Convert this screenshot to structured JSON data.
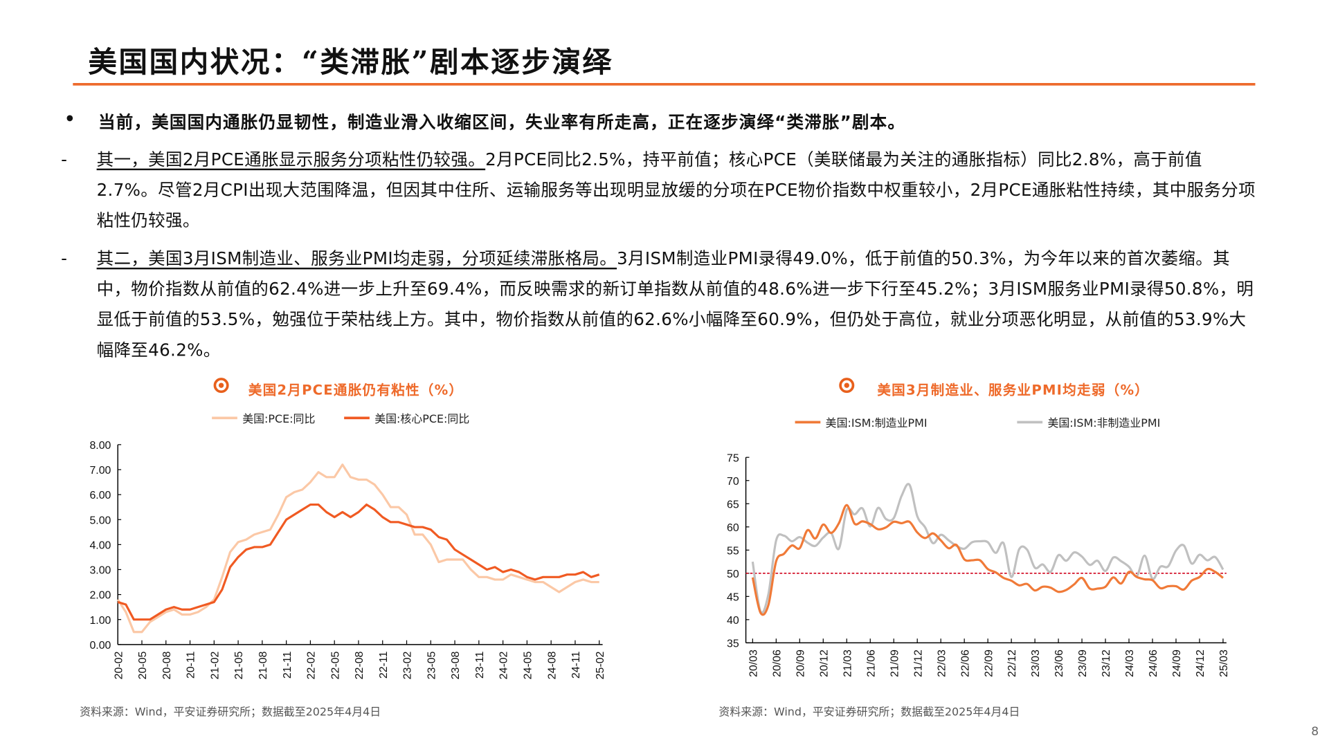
{
  "title": "美国国内状况：“类滞胀”剧本逐步演绎",
  "lead": "当前，美国国内通胀仍显韧性，制造业滑入收缩区间，失业率有所走高，正在逐步演绎“类滞胀”剧本。",
  "bullet": "•",
  "dash": "-",
  "para1": {
    "underlined": "其一，美国2月PCE通胀显示服务分项粘性仍较强。",
    "rest": "2月PCE同比2.5%，持平前值；核心PCE（美联储最为关注的通胀指标）同比2.8%，高于前值2.7%。尽管2月CPI出现大范围降温，但因其中住所、运输服务等出现明显放缓的分项在PCE物价指数中权重较小，2月PCE通胀粘性持续，其中服务分项粘性仍较强。"
  },
  "para2": {
    "underlined": "其二，美国3月ISM制造业、服务业PMI均走弱，分项延续滞胀格局。",
    "rest": "3月ISM制造业PMI录得49.0%，低于前值的50.3%，为今年以来的首次萎缩。其中，物价指数从前值的62.4%进一步上升至69.4%，而反映需求的新订单指数从前值的48.6%进一步下行至45.2%；3月ISM服务业PMI录得50.8%，明显低于前值的53.5%，勉强位于荣枯线上方。其中，物价指数从前值的62.6%小幅降至60.9%，但仍处于高位，就业分项恶化明显，从前值的53.9%大幅降至46.2%。"
  },
  "source": "资料来源：Wind，平安证券研究所；数据截至2025年4月4日",
  "page_number": "8",
  "colors": {
    "accent": "#ED6A2C",
    "pce": "#FBC8A6",
    "core_pce": "#F05A22",
    "mfg": "#F07A38",
    "nonmfg": "#C0C0C0",
    "threshold": "#D0021B"
  },
  "chart_data": [
    {
      "type": "line",
      "title": "美国2月PCE通胀仍有粘性（%）",
      "ylim": [
        0,
        8
      ],
      "yticks": [
        "0.00",
        "1.00",
        "2.00",
        "3.00",
        "4.00",
        "5.00",
        "6.00",
        "7.00",
        "8.00"
      ],
      "xticklabels": [
        "20-02",
        "20-05",
        "20-08",
        "20-11",
        "21-02",
        "21-05",
        "21-08",
        "21-11",
        "22-02",
        "22-05",
        "22-08",
        "22-11",
        "23-02",
        "23-05",
        "23-08",
        "23-11",
        "24-02",
        "24-05",
        "24-08",
        "24-11",
        "25-02"
      ],
      "legend_position": "top",
      "series": [
        {
          "name": "美国:PCE:同比",
          "values": [
            1.8,
            1.3,
            0.5,
            0.5,
            0.9,
            1.1,
            1.3,
            1.4,
            1.2,
            1.2,
            1.3,
            1.5,
            1.8,
            2.7,
            3.7,
            4.1,
            4.2,
            4.4,
            4.5,
            4.6,
            5.2,
            5.9,
            6.1,
            6.2,
            6.5,
            6.9,
            6.7,
            6.7,
            7.2,
            6.7,
            6.6,
            6.6,
            6.4,
            6.0,
            5.5,
            5.5,
            5.2,
            4.4,
            4.4,
            4.0,
            3.3,
            3.4,
            3.4,
            3.4,
            3.0,
            2.7,
            2.7,
            2.6,
            2.6,
            2.8,
            2.7,
            2.6,
            2.5,
            2.5,
            2.3,
            2.1,
            2.3,
            2.5,
            2.6,
            2.5,
            2.5
          ]
        },
        {
          "name": "美国:核心PCE:同比",
          "values": [
            1.7,
            1.6,
            1.0,
            1.0,
            1.0,
            1.2,
            1.4,
            1.5,
            1.4,
            1.4,
            1.5,
            1.6,
            1.7,
            2.2,
            3.1,
            3.5,
            3.8,
            3.9,
            3.9,
            4.0,
            4.5,
            5.0,
            5.2,
            5.4,
            5.6,
            5.6,
            5.3,
            5.1,
            5.3,
            5.1,
            5.3,
            5.6,
            5.4,
            5.1,
            4.9,
            4.9,
            4.8,
            4.7,
            4.7,
            4.6,
            4.3,
            4.2,
            3.8,
            3.6,
            3.4,
            3.2,
            3.0,
            3.1,
            2.9,
            3.0,
            2.9,
            2.7,
            2.6,
            2.7,
            2.7,
            2.7,
            2.8,
            2.8,
            2.9,
            2.7,
            2.8
          ]
        }
      ]
    },
    {
      "type": "line",
      "title": "美国3月制造业、服务业PMI均走弱（%）",
      "ylim": [
        35,
        75
      ],
      "yticks": [
        "35",
        "40",
        "45",
        "50",
        "55",
        "60",
        "65",
        "70",
        "75"
      ],
      "xticklabels": [
        "20/03",
        "20/06",
        "20/09",
        "20/12",
        "21/03",
        "21/06",
        "21/09",
        "21/12",
        "22/03",
        "22/06",
        "22/09",
        "22/12",
        "23/03",
        "23/06",
        "23/09",
        "23/12",
        "24/03",
        "24/06",
        "24/09",
        "24/12",
        "25/03"
      ],
      "reference_line": 50,
      "legend_position": "top",
      "series": [
        {
          "name": "美国:ISM:制造业PMI",
          "values": [
            49.1,
            41.5,
            43.1,
            52.6,
            54.2,
            56.0,
            55.4,
            59.3,
            57.5,
            60.5,
            58.7,
            60.8,
            64.7,
            60.7,
            61.2,
            60.6,
            59.5,
            59.9,
            61.1,
            60.8,
            61.1,
            58.8,
            57.6,
            58.6,
            57.1,
            55.4,
            56.1,
            53.0,
            52.8,
            52.8,
            50.9,
            50.2,
            49.0,
            48.4,
            47.4,
            47.7,
            46.3,
            47.1,
            46.9,
            46.0,
            46.4,
            47.6,
            49.0,
            46.7,
            46.7,
            47.1,
            49.1,
            47.8,
            50.3,
            49.2,
            48.7,
            48.5,
            46.8,
            47.2,
            47.2,
            46.5,
            48.4,
            49.2,
            50.9,
            50.3,
            49.0
          ]
        },
        {
          "name": "美国:ISM:非制造业PMI",
          "values": [
            52.5,
            41.8,
            45.4,
            57.1,
            58.1,
            56.9,
            57.8,
            56.6,
            55.9,
            57.7,
            58.7,
            55.3,
            63.7,
            62.7,
            64.0,
            60.1,
            64.1,
            61.7,
            61.9,
            66.7,
            69.1,
            62.3,
            59.9,
            56.5,
            58.3,
            57.1,
            55.9,
            55.3,
            56.7,
            56.9,
            56.7,
            54.4,
            56.5,
            49.2,
            55.2,
            55.1,
            51.2,
            51.9,
            50.3,
            53.9,
            52.7,
            54.5,
            53.6,
            51.8,
            52.7,
            50.5,
            53.4,
            52.6,
            51.4,
            49.4,
            53.8,
            48.8,
            51.4,
            51.5,
            54.9,
            56.0,
            52.1,
            54.0,
            52.8,
            53.5,
            50.8
          ]
        }
      ]
    }
  ]
}
